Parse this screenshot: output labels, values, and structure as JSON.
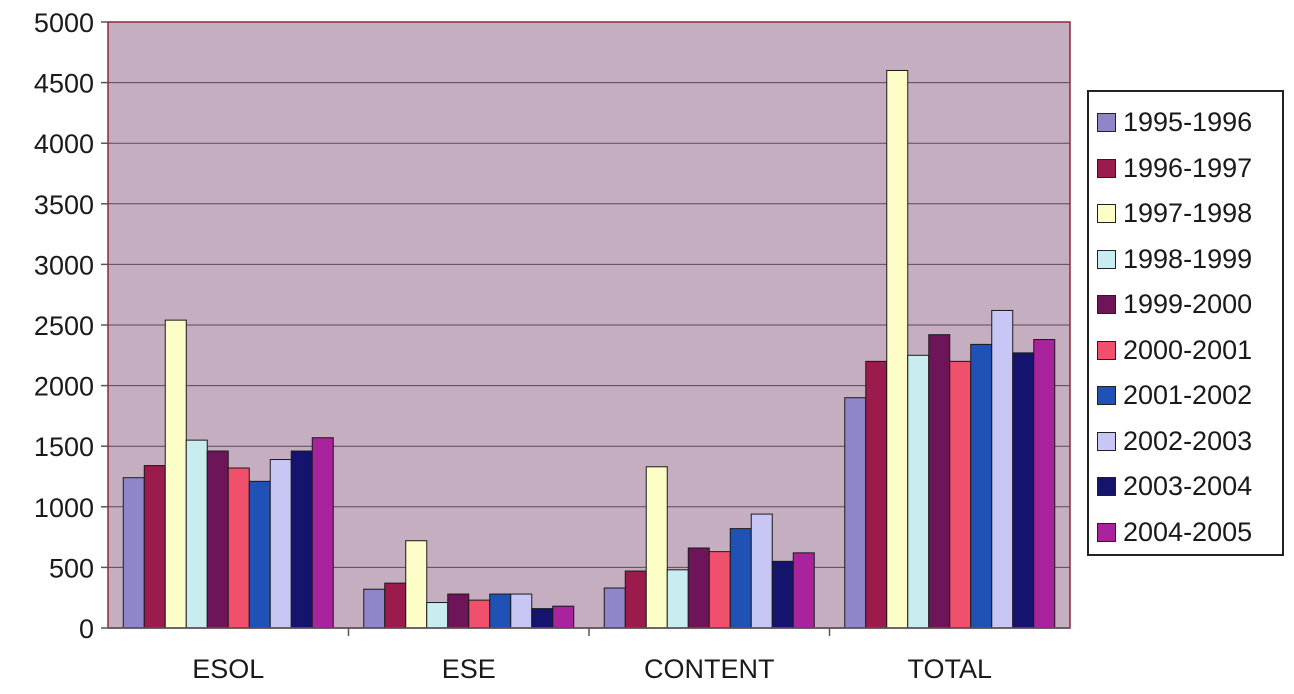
{
  "colors": {
    "plot_background": "#c4aec0",
    "plot_border": "#8a2a3a",
    "gridline": "#5a4a5a",
    "axis": "#555555"
  },
  "chart_data": {
    "type": "bar",
    "title": "",
    "xlabel": "",
    "ylabel": "",
    "categories": [
      "ESOL",
      "ESE",
      "CONTENT",
      "TOTAL"
    ],
    "ylim": [
      0,
      5000
    ],
    "yticks": [
      "0",
      "500",
      "1000",
      "1500",
      "2000",
      "2500",
      "3000",
      "3500",
      "4000",
      "4500",
      "5000"
    ],
    "grid": true,
    "legend_position": "right",
    "series": [
      {
        "name": "1995-1996",
        "color": "#8f86c9",
        "values": [
          1240,
          320,
          330,
          1900
        ]
      },
      {
        "name": "1996-1997",
        "color": "#9b1c4c",
        "values": [
          1340,
          370,
          470,
          2200
        ]
      },
      {
        "name": "1997-1998",
        "color": "#fdfdc8",
        "values": [
          2540,
          720,
          1330,
          4600
        ]
      },
      {
        "name": "1998-1999",
        "color": "#c8ecf0",
        "values": [
          1550,
          210,
          480,
          2250
        ]
      },
      {
        "name": "1999-2000",
        "color": "#6e1458",
        "values": [
          1460,
          280,
          660,
          2420
        ]
      },
      {
        "name": "2000-2001",
        "color": "#f0506c",
        "values": [
          1320,
          230,
          630,
          2200
        ]
      },
      {
        "name": "2001-2002",
        "color": "#1f52b4",
        "values": [
          1210,
          280,
          820,
          2340
        ]
      },
      {
        "name": "2002-2003",
        "color": "#c8c6f4",
        "values": [
          1390,
          280,
          940,
          2620
        ]
      },
      {
        "name": "2003-2004",
        "color": "#14146e",
        "values": [
          1460,
          160,
          550,
          2270
        ]
      },
      {
        "name": "2004-2005",
        "color": "#a8239c",
        "values": [
          1570,
          180,
          620,
          2380
        ]
      }
    ]
  }
}
